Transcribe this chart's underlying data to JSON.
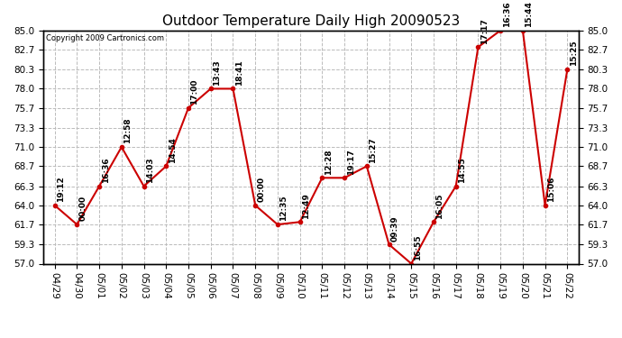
{
  "title": "Outdoor Temperature Daily High 20090523",
  "copyright": "Copyright 2009 Cartronics.com",
  "dates": [
    "04/29",
    "04/30",
    "05/01",
    "05/02",
    "05/03",
    "05/04",
    "05/05",
    "05/06",
    "05/07",
    "05/08",
    "05/09",
    "05/10",
    "05/11",
    "05/12",
    "05/13",
    "05/14",
    "05/15",
    "05/16",
    "05/17",
    "05/18",
    "05/19",
    "05/20",
    "05/21",
    "05/22"
  ],
  "values": [
    64.0,
    61.7,
    66.3,
    71.0,
    66.3,
    68.7,
    75.7,
    78.0,
    78.0,
    64.0,
    61.7,
    62.0,
    67.3,
    67.3,
    68.7,
    59.3,
    57.0,
    62.0,
    66.3,
    83.0,
    85.0,
    85.0,
    64.0,
    80.3
  ],
  "labels": [
    "19:12",
    "00:00",
    "16:36",
    "12:58",
    "14:03",
    "14:54",
    "17:00",
    "13:43",
    "18:41",
    "00:00",
    "12:35",
    "12:49",
    "12:28",
    "19:17",
    "15:27",
    "09:39",
    "16:55",
    "16:05",
    "14:55",
    "17:17",
    "16:36",
    "15:44",
    "15:06",
    "15:25"
  ],
  "ylim": [
    57.0,
    85.0
  ],
  "yticks": [
    57.0,
    59.3,
    61.7,
    64.0,
    66.3,
    68.7,
    71.0,
    73.3,
    75.7,
    78.0,
    80.3,
    82.7,
    85.0
  ],
  "line_color": "#cc0000",
  "marker_color": "#cc0000",
  "bg_color": "#ffffff",
  "grid_color": "#bbbbbb",
  "title_fontsize": 11,
  "label_fontsize": 6.5,
  "tick_fontsize": 7.5,
  "copyright_fontsize": 6
}
